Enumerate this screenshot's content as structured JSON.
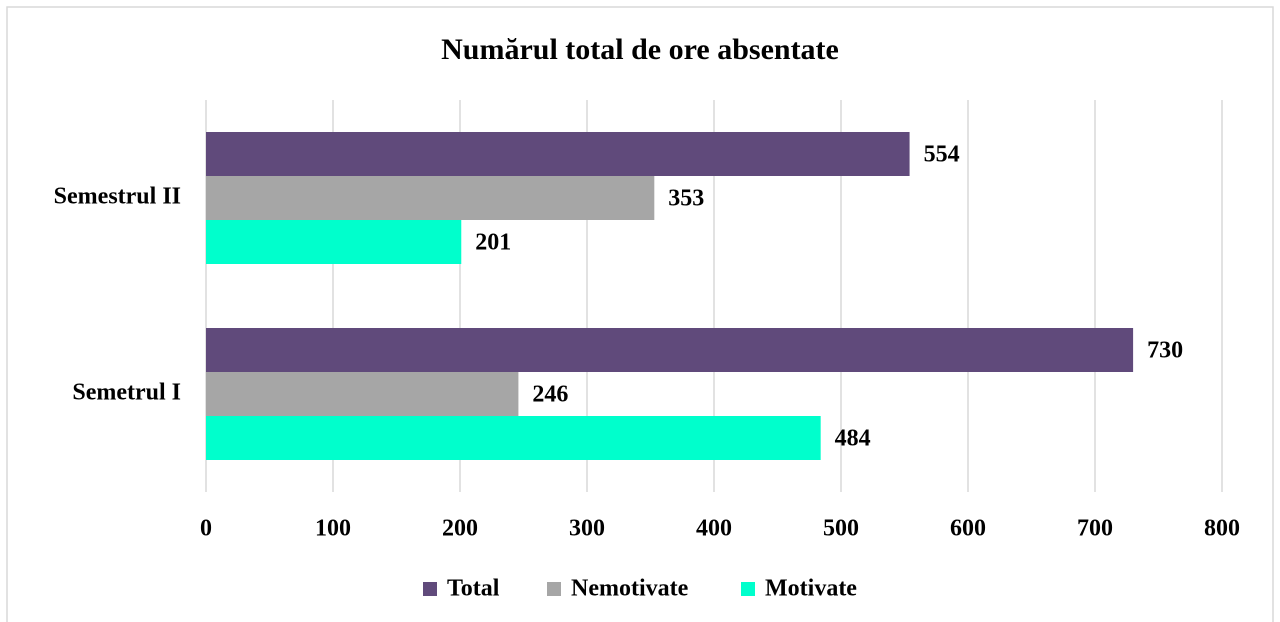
{
  "chart_data": {
    "type": "bar",
    "orientation": "horizontal",
    "title": "Numărul total de ore absentate",
    "categories": [
      "Semetrul I",
      "Semestrul II"
    ],
    "series": [
      {
        "name": "Total",
        "color": "#604a7b",
        "values": [
          730,
          554
        ]
      },
      {
        "name": "Nemotivate",
        "color": "#a6a6a6",
        "values": [
          246,
          353
        ]
      },
      {
        "name": "Motivate",
        "color": "#00ffcc",
        "values": [
          484,
          201
        ]
      }
    ],
    "xlim": [
      0,
      800
    ],
    "xticks": [
      0,
      100,
      200,
      300,
      400,
      500,
      600,
      700,
      800
    ],
    "grid": true,
    "legend": "bottom"
  }
}
